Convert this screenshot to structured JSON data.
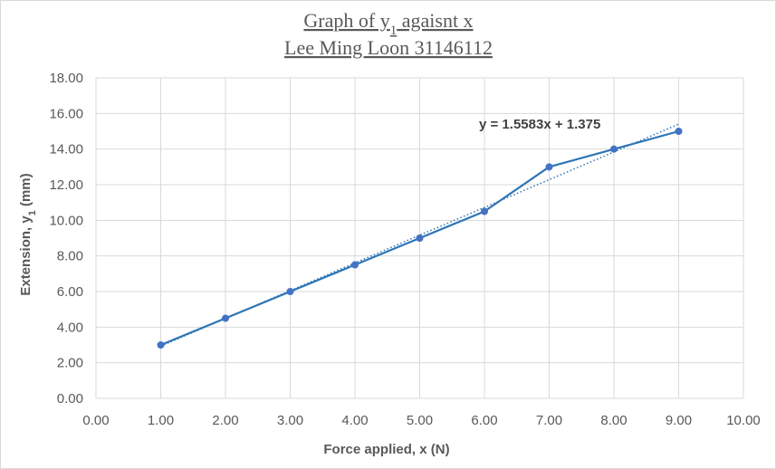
{
  "chart_data": {
    "type": "line",
    "title_line1_prefix": "Graph of y",
    "title_line1_sub": "1",
    "title_line1_suffix": " agaisnt x",
    "title_line2": "Lee Ming  Loon 31146112",
    "xlabel": "Force applied, x (N)",
    "ylabel_prefix": "Extension, y",
    "ylabel_sub": "1",
    "ylabel_suffix": " (mm)",
    "xlim": [
      0,
      10
    ],
    "ylim": [
      0,
      18
    ],
    "x_ticks": [
      "0.00",
      "1.00",
      "2.00",
      "3.00",
      "4.00",
      "5.00",
      "6.00",
      "7.00",
      "8.00",
      "9.00",
      "10.00"
    ],
    "y_ticks": [
      "0.00",
      "2.00",
      "4.00",
      "6.00",
      "8.00",
      "10.00",
      "12.00",
      "14.00",
      "16.00",
      "18.00"
    ],
    "grid": true,
    "series": [
      {
        "x": [
          1,
          2,
          3,
          4,
          5,
          6,
          7,
          8,
          9
        ],
        "values": [
          3.0,
          4.5,
          6.0,
          7.5,
          9.0,
          10.5,
          13.0,
          14.0,
          15.0
        ],
        "color": "#2e75b6"
      }
    ],
    "trendline": {
      "type": "linear",
      "slope": 1.5583,
      "intercept": 1.375,
      "x_range": [
        1,
        9
      ],
      "style": "dotted",
      "color": "#2e75b6",
      "equation_label": "y = 1.5583x + 1.375"
    }
  }
}
